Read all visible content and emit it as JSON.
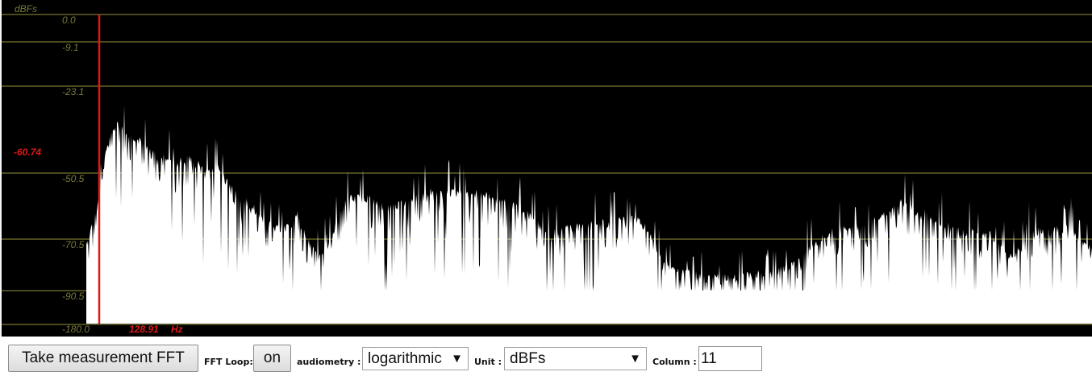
{
  "chart_data": {
    "type": "area",
    "unit_label": "dBFs",
    "y_ticks": [
      "0.0",
      "-9.1",
      "-23.1",
      "-50.5",
      "-70.5",
      "-90.5",
      "-180.0"
    ],
    "y_tick_values": [
      0.0,
      -9.1,
      -23.1,
      -50.5,
      -70.5,
      -90.5,
      -180.0
    ],
    "cursor": {
      "level_label": "-60.74",
      "freq_label": "128.91",
      "freq_unit": "Hz"
    },
    "colors": {
      "background": "#000000",
      "grid": "#4a4a1e",
      "axis_text": "#7a7a3c",
      "spectrum_fill": "#ffffff",
      "cursor": "#e01818"
    },
    "spectrum_anchors_dbfs": [
      [
        0.0,
        -70.5
      ],
      [
        0.005,
        -66
      ],
      [
        0.012,
        -58
      ],
      [
        0.02,
        -42
      ],
      [
        0.03,
        -33
      ],
      [
        0.04,
        -36
      ],
      [
        0.05,
        -38
      ],
      [
        0.06,
        -41
      ],
      [
        0.07,
        -43
      ],
      [
        0.08,
        -45
      ],
      [
        0.09,
        -46
      ],
      [
        0.1,
        -44
      ],
      [
        0.11,
        -46
      ],
      [
        0.12,
        -48
      ],
      [
        0.13,
        -47
      ],
      [
        0.14,
        -52
      ],
      [
        0.15,
        -56
      ],
      [
        0.16,
        -58
      ],
      [
        0.17,
        -61
      ],
      [
        0.18,
        -64
      ],
      [
        0.19,
        -66
      ],
      [
        0.2,
        -66
      ],
      [
        0.21,
        -62
      ],
      [
        0.22,
        -70
      ],
      [
        0.23,
        -75
      ],
      [
        0.24,
        -72
      ],
      [
        0.25,
        -63
      ],
      [
        0.26,
        -57
      ],
      [
        0.27,
        -56
      ],
      [
        0.28,
        -57
      ],
      [
        0.3,
        -60
      ],
      [
        0.32,
        -58
      ],
      [
        0.34,
        -55
      ],
      [
        0.36,
        -55
      ],
      [
        0.38,
        -55
      ],
      [
        0.4,
        -56
      ],
      [
        0.42,
        -58
      ],
      [
        0.44,
        -62
      ],
      [
        0.46,
        -68
      ],
      [
        0.48,
        -66
      ],
      [
        0.5,
        -65
      ],
      [
        0.52,
        -64
      ],
      [
        0.54,
        -63
      ],
      [
        0.55,
        -64
      ],
      [
        0.56,
        -67
      ],
      [
        0.57,
        -75
      ],
      [
        0.58,
        -80
      ],
      [
        0.6,
        -82
      ],
      [
        0.62,
        -84
      ],
      [
        0.64,
        -84
      ],
      [
        0.66,
        -83
      ],
      [
        0.68,
        -82
      ],
      [
        0.7,
        -80
      ],
      [
        0.72,
        -72
      ],
      [
        0.74,
        -67
      ],
      [
        0.76,
        -66
      ],
      [
        0.78,
        -63
      ],
      [
        0.8,
        -61
      ],
      [
        0.81,
        -58
      ],
      [
        0.82,
        -60
      ],
      [
        0.84,
        -62
      ],
      [
        0.86,
        -66
      ],
      [
        0.88,
        -67
      ],
      [
        0.9,
        -68
      ],
      [
        0.91,
        -73
      ],
      [
        0.92,
        -76
      ],
      [
        0.93,
        -72
      ],
      [
        0.94,
        -67
      ],
      [
        0.96,
        -66
      ],
      [
        0.98,
        -66
      ],
      [
        0.99,
        -71
      ],
      [
        1.0,
        -73
      ]
    ]
  },
  "toolbar": {
    "measure_button": "Take measurement FFT",
    "fft_loop_label": "FFT Loop:",
    "fft_loop_button": "on",
    "audiometry_label": "audiometry :",
    "audiometry_value": "logarithmic",
    "unit_label": "Unit :",
    "unit_value": "dBFs",
    "column_label": "Column :",
    "column_value": "11",
    "caret_glyph": "▼"
  }
}
